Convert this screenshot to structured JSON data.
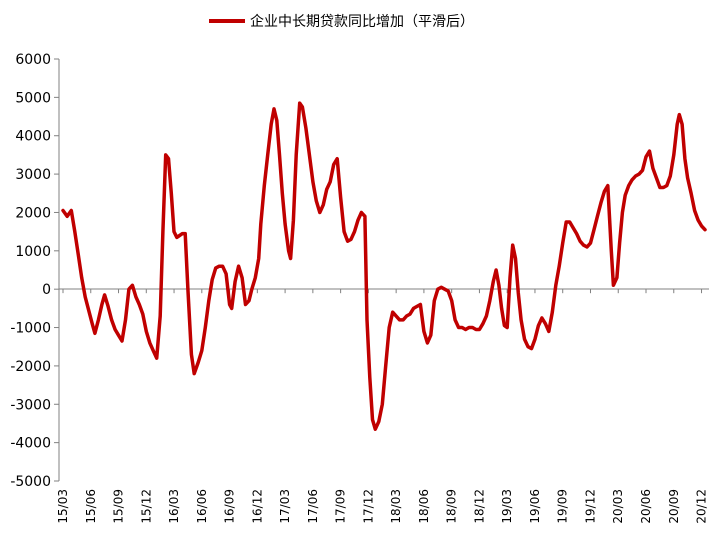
{
  "chart_data": {
    "type": "line",
    "title": "",
    "xlabel": "",
    "ylabel": "",
    "ylim": [
      -5000,
      6000
    ],
    "yticks": [
      6000,
      5000,
      4000,
      3000,
      2000,
      1000,
      0,
      -1000,
      -2000,
      -3000,
      -4000,
      -5000
    ],
    "legend_position": "top-center",
    "grid": false,
    "xticklabels": [
      "15/03",
      "15/06",
      "15/09",
      "15/12",
      "16/03",
      "16/06",
      "16/09",
      "16/12",
      "17/03",
      "17/06",
      "17/09",
      "17/12",
      "18/03",
      "18/06",
      "18/09",
      "18/12",
      "19/03",
      "19/06",
      "19/09",
      "19/12",
      "20/03",
      "20/06",
      "20/09",
      "20/12"
    ],
    "series": [
      {
        "name": "企业中长期贷款同比增加（平滑后）",
        "color": "#c00000",
        "points": [
          [
            0,
            2050
          ],
          [
            0.6,
            1900
          ],
          [
            1.2,
            2050
          ],
          [
            1.7,
            1500
          ],
          [
            2.2,
            900
          ],
          [
            2.7,
            300
          ],
          [
            3.2,
            -200
          ],
          [
            3.7,
            -550
          ],
          [
            4.2,
            -900
          ],
          [
            4.6,
            -1150
          ],
          [
            5.1,
            -800
          ],
          [
            5.6,
            -400
          ],
          [
            6,
            -150
          ],
          [
            6.5,
            -450
          ],
          [
            7,
            -800
          ],
          [
            7.5,
            -1050
          ],
          [
            8,
            -1200
          ],
          [
            8.5,
            -1350
          ],
          [
            9,
            -800
          ],
          [
            9.5,
            0
          ],
          [
            10,
            100
          ],
          [
            10.5,
            -200
          ],
          [
            11,
            -400
          ],
          [
            11.5,
            -650
          ],
          [
            12,
            -1100
          ],
          [
            12.5,
            -1400
          ],
          [
            13,
            -1600
          ],
          [
            13.5,
            -1800
          ],
          [
            14,
            -700
          ],
          [
            14.4,
            1500
          ],
          [
            14.8,
            3500
          ],
          [
            15.2,
            3400
          ],
          [
            15.6,
            2500
          ],
          [
            16,
            1500
          ],
          [
            16.4,
            1350
          ],
          [
            16.8,
            1400
          ],
          [
            17.2,
            1450
          ],
          [
            17.6,
            1450
          ],
          [
            18,
            0
          ],
          [
            18.5,
            -1700
          ],
          [
            18.9,
            -2200
          ],
          [
            19.5,
            -1900
          ],
          [
            20,
            -1600
          ],
          [
            20.5,
            -1000
          ],
          [
            21,
            -300
          ],
          [
            21.5,
            250
          ],
          [
            22,
            550
          ],
          [
            22.5,
            600
          ],
          [
            23,
            600
          ],
          [
            23.5,
            400
          ],
          [
            24,
            -400
          ],
          [
            24.3,
            -500
          ],
          [
            24.8,
            200
          ],
          [
            25.3,
            600
          ],
          [
            25.8,
            300
          ],
          [
            26.3,
            -400
          ],
          [
            26.8,
            -300
          ],
          [
            27.2,
            0
          ],
          [
            27.7,
            300
          ],
          [
            28.2,
            800
          ],
          [
            28.5,
            1700
          ],
          [
            29,
            2700
          ],
          [
            29.5,
            3500
          ],
          [
            30,
            4300
          ],
          [
            30.4,
            4700
          ],
          [
            30.8,
            4400
          ],
          [
            31.2,
            3500
          ],
          [
            31.6,
            2500
          ],
          [
            32,
            1700
          ],
          [
            32.5,
            1000
          ],
          [
            32.8,
            800
          ],
          [
            33.2,
            1800
          ],
          [
            33.6,
            3500
          ],
          [
            34.1,
            4850
          ],
          [
            34.5,
            4750
          ],
          [
            35,
            4200
          ],
          [
            35.5,
            3500
          ],
          [
            36,
            2800
          ],
          [
            36.5,
            2300
          ],
          [
            37,
            2000
          ],
          [
            37.5,
            2200
          ],
          [
            38,
            2600
          ],
          [
            38.5,
            2800
          ],
          [
            39,
            3250
          ],
          [
            39.5,
            3400
          ],
          [
            40,
            2400
          ],
          [
            40.5,
            1500
          ],
          [
            41,
            1250
          ],
          [
            41.5,
            1300
          ],
          [
            42,
            1500
          ],
          [
            42.5,
            1800
          ],
          [
            43,
            2000
          ],
          [
            43.5,
            1900
          ],
          [
            43.8,
            -800
          ],
          [
            44.2,
            -2300
          ],
          [
            44.6,
            -3400
          ],
          [
            45,
            -3650
          ],
          [
            45.5,
            -3450
          ],
          [
            46,
            -3000
          ],
          [
            46.5,
            -2000
          ],
          [
            47,
            -1000
          ],
          [
            47.5,
            -600
          ],
          [
            48,
            -700
          ],
          [
            48.5,
            -800
          ],
          [
            49,
            -800
          ],
          [
            49.5,
            -700
          ],
          [
            50,
            -650
          ],
          [
            50.5,
            -500
          ],
          [
            51,
            -450
          ],
          [
            51.5,
            -400
          ],
          [
            52,
            -1100
          ],
          [
            52.5,
            -1400
          ],
          [
            53,
            -1200
          ],
          [
            53.5,
            -300
          ],
          [
            54,
            0
          ],
          [
            54.5,
            50
          ],
          [
            55,
            0
          ],
          [
            55.5,
            -50
          ],
          [
            56,
            -300
          ],
          [
            56.5,
            -800
          ],
          [
            57,
            -1000
          ],
          [
            57.5,
            -1000
          ],
          [
            58,
            -1050
          ],
          [
            58.5,
            -1000
          ],
          [
            59,
            -1000
          ],
          [
            59.5,
            -1050
          ],
          [
            60,
            -1050
          ],
          [
            60.5,
            -900
          ],
          [
            61,
            -700
          ],
          [
            61.5,
            -300
          ],
          [
            62,
            200
          ],
          [
            62.4,
            500
          ],
          [
            62.8,
            100
          ],
          [
            63.2,
            -500
          ],
          [
            63.6,
            -950
          ],
          [
            64,
            -1000
          ],
          [
            64.4,
            300
          ],
          [
            64.8,
            1150
          ],
          [
            65.2,
            800
          ],
          [
            65.6,
            -100
          ],
          [
            66,
            -800
          ],
          [
            66.5,
            -1300
          ],
          [
            67,
            -1500
          ],
          [
            67.5,
            -1550
          ],
          [
            68,
            -1300
          ],
          [
            68.5,
            -950
          ],
          [
            69,
            -750
          ],
          [
            69.5,
            -900
          ],
          [
            70,
            -1100
          ],
          [
            70.5,
            -600
          ],
          [
            71,
            100
          ],
          [
            71.5,
            600
          ],
          [
            72,
            1200
          ],
          [
            72.5,
            1750
          ],
          [
            73,
            1750
          ],
          [
            73.5,
            1600
          ],
          [
            74,
            1450
          ],
          [
            74.5,
            1250
          ],
          [
            75,
            1150
          ],
          [
            75.5,
            1100
          ],
          [
            76,
            1200
          ],
          [
            76.5,
            1550
          ],
          [
            77,
            1900
          ],
          [
            77.5,
            2250
          ],
          [
            78,
            2550
          ],
          [
            78.5,
            2700
          ],
          [
            79,
            1000
          ],
          [
            79.3,
            100
          ],
          [
            79.8,
            300
          ],
          [
            80.2,
            1200
          ],
          [
            80.6,
            2000
          ],
          [
            81,
            2450
          ],
          [
            81.5,
            2700
          ],
          [
            82,
            2850
          ],
          [
            82.5,
            2950
          ],
          [
            83,
            3000
          ],
          [
            83.5,
            3100
          ],
          [
            84,
            3450
          ],
          [
            84.5,
            3600
          ],
          [
            85,
            3150
          ],
          [
            85.5,
            2900
          ],
          [
            86,
            2650
          ],
          [
            86.5,
            2650
          ],
          [
            87,
            2700
          ],
          [
            87.5,
            2950
          ],
          [
            88,
            3500
          ],
          [
            88.5,
            4300
          ],
          [
            88.8,
            4550
          ],
          [
            89.2,
            4300
          ],
          [
            89.6,
            3400
          ],
          [
            90,
            2900
          ],
          [
            90.5,
            2500
          ],
          [
            91,
            2050
          ],
          [
            91.5,
            1800
          ],
          [
            92,
            1650
          ],
          [
            92.5,
            1550
          ]
        ]
      }
    ]
  }
}
